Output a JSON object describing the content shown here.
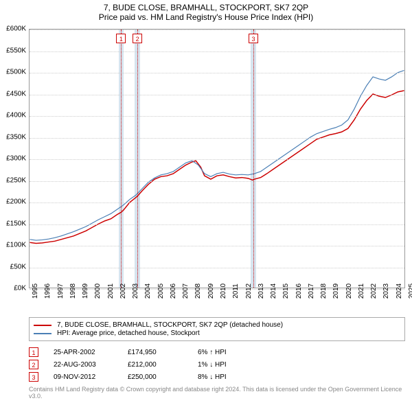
{
  "title": "7, BUDE CLOSE, BRAMHALL, STOCKPORT, SK7 2QP",
  "subtitle": "Price paid vs. HM Land Registry's House Price Index (HPI)",
  "chart": {
    "type": "line",
    "x_start_year": 1995,
    "x_end_year": 2025,
    "ylim": [
      0,
      600000
    ],
    "ytick_step": 50000,
    "yticks_k": [
      0,
      50,
      100,
      150,
      200,
      250,
      300,
      350,
      400,
      450,
      500,
      550,
      600
    ],
    "grid_color": "#cccccc",
    "background_color": "#ffffff",
    "border_color": "#999999",
    "band_color": "#d6e4ef",
    "marker_border_color": "#cc0000",
    "series": [
      {
        "name": "property",
        "label": "7, BUDE CLOSE, BRAMHALL, STOCKPORT, SK7 2QP (detached house)",
        "color": "#cc0000",
        "width": 1.5,
        "points": [
          [
            1995.0,
            105000
          ],
          [
            1995.5,
            103000
          ],
          [
            1996.0,
            104000
          ],
          [
            1996.5,
            106000
          ],
          [
            1997.0,
            108000
          ],
          [
            1997.5,
            112000
          ],
          [
            1998.0,
            116000
          ],
          [
            1998.5,
            120000
          ],
          [
            1999.0,
            126000
          ],
          [
            1999.5,
            132000
          ],
          [
            2000.0,
            140000
          ],
          [
            2000.5,
            148000
          ],
          [
            2001.0,
            155000
          ],
          [
            2001.5,
            160000
          ],
          [
            2002.0,
            170000
          ],
          [
            2002.3,
            174950
          ],
          [
            2002.5,
            180000
          ],
          [
            2003.0,
            198000
          ],
          [
            2003.6,
            212000
          ],
          [
            2004.0,
            225000
          ],
          [
            2004.5,
            240000
          ],
          [
            2005.0,
            252000
          ],
          [
            2005.5,
            258000
          ],
          [
            2006.0,
            260000
          ],
          [
            2006.5,
            265000
          ],
          [
            2007.0,
            275000
          ],
          [
            2007.5,
            285000
          ],
          [
            2008.0,
            292000
          ],
          [
            2008.3,
            295000
          ],
          [
            2008.7,
            280000
          ],
          [
            2009.0,
            260000
          ],
          [
            2009.5,
            252000
          ],
          [
            2010.0,
            260000
          ],
          [
            2010.5,
            262000
          ],
          [
            2011.0,
            258000
          ],
          [
            2011.5,
            255000
          ],
          [
            2012.0,
            256000
          ],
          [
            2012.5,
            254000
          ],
          [
            2012.85,
            250000
          ],
          [
            2013.0,
            252000
          ],
          [
            2013.5,
            256000
          ],
          [
            2014.0,
            265000
          ],
          [
            2014.5,
            275000
          ],
          [
            2015.0,
            285000
          ],
          [
            2015.5,
            295000
          ],
          [
            2016.0,
            305000
          ],
          [
            2016.5,
            315000
          ],
          [
            2017.0,
            325000
          ],
          [
            2017.5,
            335000
          ],
          [
            2018.0,
            345000
          ],
          [
            2018.5,
            350000
          ],
          [
            2019.0,
            355000
          ],
          [
            2019.5,
            358000
          ],
          [
            2020.0,
            362000
          ],
          [
            2020.5,
            370000
          ],
          [
            2021.0,
            390000
          ],
          [
            2021.5,
            415000
          ],
          [
            2022.0,
            435000
          ],
          [
            2022.5,
            450000
          ],
          [
            2023.0,
            445000
          ],
          [
            2023.5,
            442000
          ],
          [
            2024.0,
            448000
          ],
          [
            2024.5,
            455000
          ],
          [
            2025.0,
            458000
          ]
        ]
      },
      {
        "name": "hpi",
        "label": "HPI: Average price, detached house, Stockport",
        "color": "#4a7fb5",
        "width": 1.2,
        "points": [
          [
            1995.0,
            112000
          ],
          [
            1995.5,
            110000
          ],
          [
            1996.0,
            111000
          ],
          [
            1996.5,
            113000
          ],
          [
            1997.0,
            116000
          ],
          [
            1997.5,
            120000
          ],
          [
            1998.0,
            125000
          ],
          [
            1998.5,
            130000
          ],
          [
            1999.0,
            136000
          ],
          [
            1999.5,
            142000
          ],
          [
            2000.0,
            150000
          ],
          [
            2000.5,
            158000
          ],
          [
            2001.0,
            165000
          ],
          [
            2001.5,
            172000
          ],
          [
            2002.0,
            182000
          ],
          [
            2002.5,
            192000
          ],
          [
            2003.0,
            205000
          ],
          [
            2003.5,
            215000
          ],
          [
            2004.0,
            230000
          ],
          [
            2004.5,
            245000
          ],
          [
            2005.0,
            255000
          ],
          [
            2005.5,
            262000
          ],
          [
            2006.0,
            265000
          ],
          [
            2006.5,
            270000
          ],
          [
            2007.0,
            280000
          ],
          [
            2007.5,
            290000
          ],
          [
            2008.0,
            295000
          ],
          [
            2008.5,
            285000
          ],
          [
            2009.0,
            265000
          ],
          [
            2009.5,
            258000
          ],
          [
            2010.0,
            265000
          ],
          [
            2010.5,
            268000
          ],
          [
            2011.0,
            264000
          ],
          [
            2011.5,
            262000
          ],
          [
            2012.0,
            263000
          ],
          [
            2012.5,
            262000
          ],
          [
            2013.0,
            265000
          ],
          [
            2013.5,
            270000
          ],
          [
            2014.0,
            280000
          ],
          [
            2014.5,
            290000
          ],
          [
            2015.0,
            300000
          ],
          [
            2015.5,
            310000
          ],
          [
            2016.0,
            320000
          ],
          [
            2016.5,
            330000
          ],
          [
            2017.0,
            340000
          ],
          [
            2017.5,
            350000
          ],
          [
            2018.0,
            358000
          ],
          [
            2018.5,
            363000
          ],
          [
            2019.0,
            368000
          ],
          [
            2019.5,
            372000
          ],
          [
            2020.0,
            378000
          ],
          [
            2020.5,
            390000
          ],
          [
            2021.0,
            415000
          ],
          [
            2021.5,
            445000
          ],
          [
            2022.0,
            470000
          ],
          [
            2022.5,
            490000
          ],
          [
            2023.0,
            485000
          ],
          [
            2023.5,
            482000
          ],
          [
            2024.0,
            490000
          ],
          [
            2024.5,
            500000
          ],
          [
            2025.0,
            505000
          ]
        ]
      }
    ],
    "bands": [
      {
        "start": 2002.1,
        "end": 2002.5
      },
      {
        "start": 2003.4,
        "end": 2003.8
      },
      {
        "start": 2012.65,
        "end": 2013.05
      }
    ],
    "sale_markers": [
      {
        "n": "1",
        "x": 2002.3
      },
      {
        "n": "2",
        "x": 2003.6
      },
      {
        "n": "3",
        "x": 2012.85
      }
    ]
  },
  "legend": {
    "items": [
      {
        "color": "#cc0000",
        "label": "7, BUDE CLOSE, BRAMHALL, STOCKPORT, SK7 2QP (detached house)"
      },
      {
        "color": "#4a7fb5",
        "label": "HPI: Average price, detached house, Stockport"
      }
    ]
  },
  "sales": [
    {
      "n": "1",
      "date": "25-APR-2002",
      "price": "£174,950",
      "hpi": "6% ↑ HPI"
    },
    {
      "n": "2",
      "date": "22-AUG-2003",
      "price": "£212,000",
      "hpi": "1% ↓ HPI"
    },
    {
      "n": "3",
      "date": "09-NOV-2012",
      "price": "£250,000",
      "hpi": "8% ↓ HPI"
    }
  ],
  "footer": "Contains HM Land Registry data © Crown copyright and database right 2024. This data is licensed under the Open Government Licence v3.0."
}
